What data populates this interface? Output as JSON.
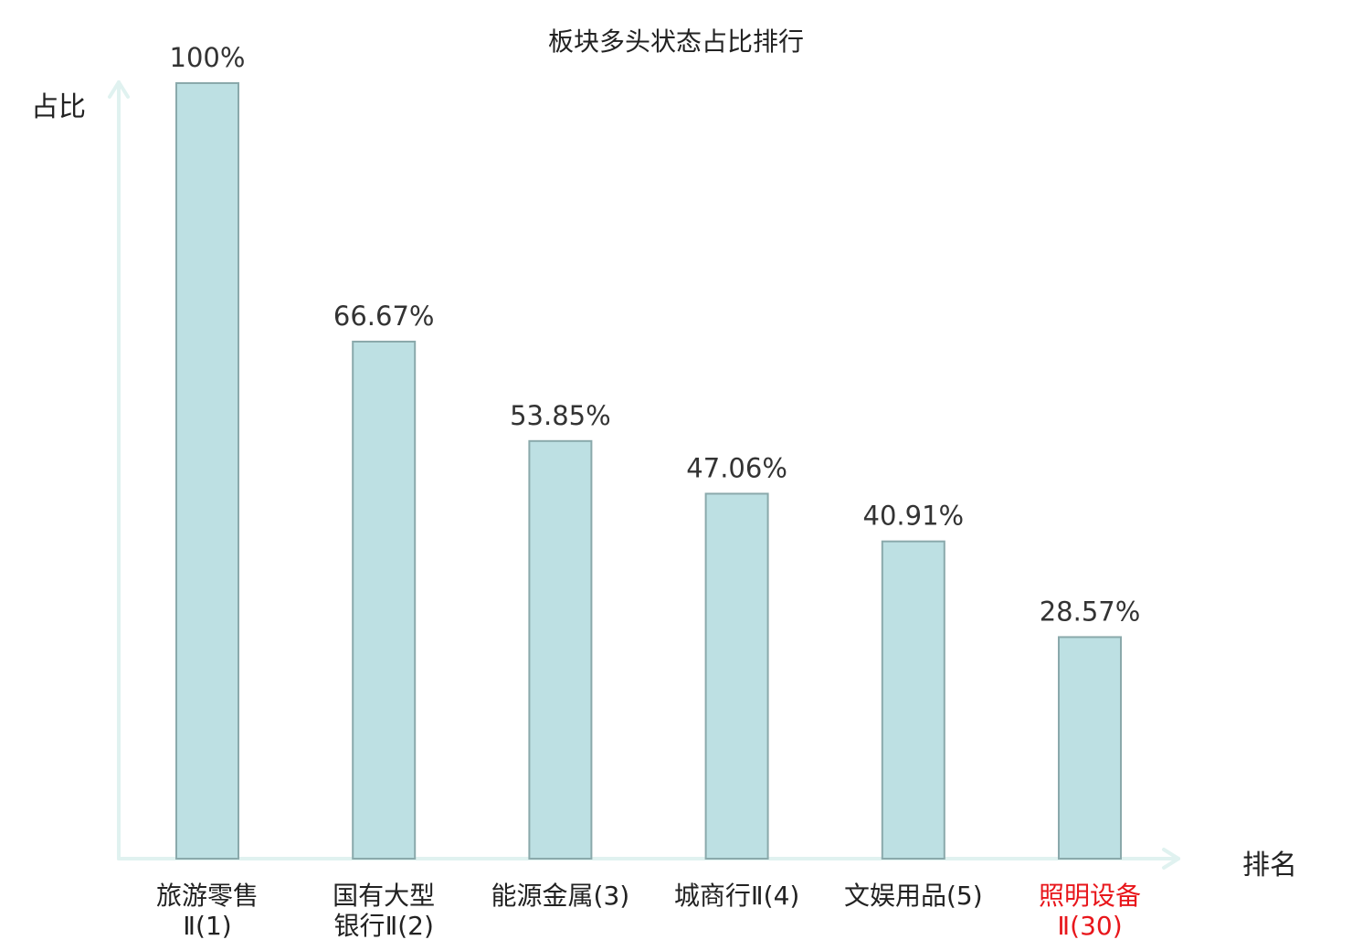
{
  "chart_data": {
    "type": "bar",
    "title": "板块多头状态占比排行",
    "ylabel": "占比",
    "xlabel": "排名",
    "ylim": [
      0,
      100
    ],
    "grid": false,
    "categories": [
      {
        "name": "旅游零售",
        "rank": "Ⅱ(1)",
        "line1": "旅游零售",
        "line2": "Ⅱ(1)",
        "highlight": false
      },
      {
        "name": "国有大型银行Ⅱ",
        "rank": "(2)",
        "line1": "国有大型",
        "line2": "银行Ⅱ(2)",
        "highlight": false
      },
      {
        "name": "能源金属",
        "rank": "(3)",
        "line1": "能源金属(3)",
        "line2": "",
        "highlight": false
      },
      {
        "name": "城商行Ⅱ",
        "rank": "(4)",
        "line1": "城商行Ⅱ(4)",
        "line2": "",
        "highlight": false
      },
      {
        "name": "文娱用品",
        "rank": "(5)",
        "line1": "文娱用品(5)",
        "line2": "",
        "highlight": false
      },
      {
        "name": "照明设备Ⅱ",
        "rank": "(30)",
        "line1": "照明设备",
        "line2": "Ⅱ(30)",
        "highlight": true
      }
    ],
    "values": [
      100,
      66.67,
      53.85,
      47.06,
      40.91,
      28.57
    ],
    "value_labels": [
      "100%",
      "66.67%",
      "53.85%",
      "47.06%",
      "40.91%",
      "28.57%"
    ]
  },
  "colors": {
    "bar_fill": "#bde0e3",
    "bar_stroke": "#8aa9ab",
    "axis": "#e0f2f0",
    "highlight": "#e8161b",
    "text": "#333333"
  }
}
